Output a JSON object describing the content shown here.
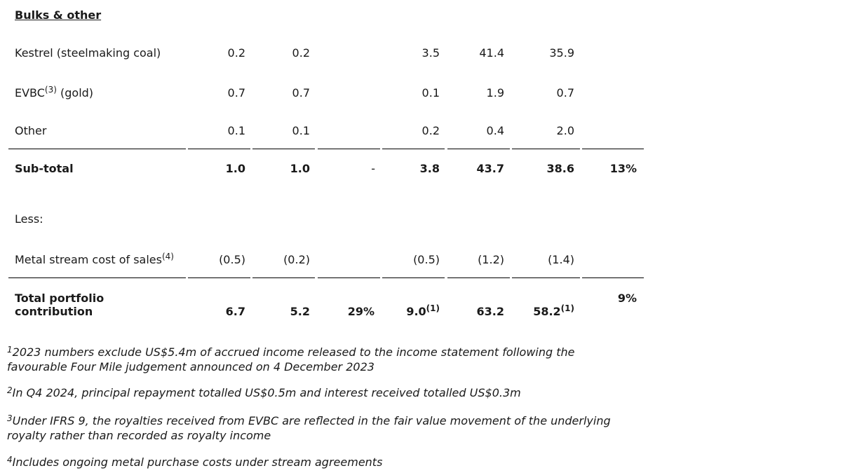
{
  "section_title": "Bulks & other",
  "rows": {
    "kestrel": {
      "label": "Kestrel (steelmaking coal)",
      "c1": "0.2",
      "c2": "0.2",
      "c4": "3.5",
      "c5": "41.4",
      "c6": "35.9"
    },
    "evbc": {
      "label": "EVBC",
      "label_sup": "(3)",
      "label_suffix": " (gold)",
      "c1": "0.7",
      "c2": "0.7",
      "c4": "0.1",
      "c5": "1.9",
      "c6": "0.7"
    },
    "other": {
      "label": "Other",
      "c1": "0.1",
      "c2": "0.1",
      "c4": "0.2",
      "c5": "0.4",
      "c6": "2.0"
    },
    "subtotal": {
      "label": "Sub-total",
      "c1": "1.0",
      "c2": "1.0",
      "c3": "-",
      "c4": "3.8",
      "c5": "43.7",
      "c6": "38.6",
      "c7": "13%"
    },
    "less": {
      "label": "Less:"
    },
    "metal_stream": {
      "label": "Metal stream cost of sales",
      "label_sup": "(4)",
      "c1": "(0.5)",
      "c2": "(0.2)",
      "c4": "(0.5)",
      "c5": "(1.2)",
      "c6": "(1.4)"
    },
    "total": {
      "label_line1": "Total portfolio",
      "label_line2": "contribution",
      "c1": "6.7",
      "c2": "5.2",
      "c3": "29%",
      "c4": "9.0",
      "c4_sup": "(1)",
      "c5": "63.2",
      "c6": "58.2",
      "c6_sup": "(1)",
      "c7": "9%"
    }
  },
  "footnotes": [
    {
      "marker": "1",
      "text": "2023 numbers exclude US$5.4m of accrued income released to the income statement following the favourable Four Mile judgement announced on 4 December 2023"
    },
    {
      "marker": "2",
      "text": "In Q4 2024, principal repayment totalled US$0.5m and interest received totalled US$0.3m"
    },
    {
      "marker": "3",
      "text": "Under IFRS 9, the royalties received from EVBC are reflected in the fair value movement of the underlying royalty rather than recorded as royalty income"
    },
    {
      "marker": "4",
      "text": "Includes ongoing metal purchase costs under stream agreements"
    }
  ]
}
